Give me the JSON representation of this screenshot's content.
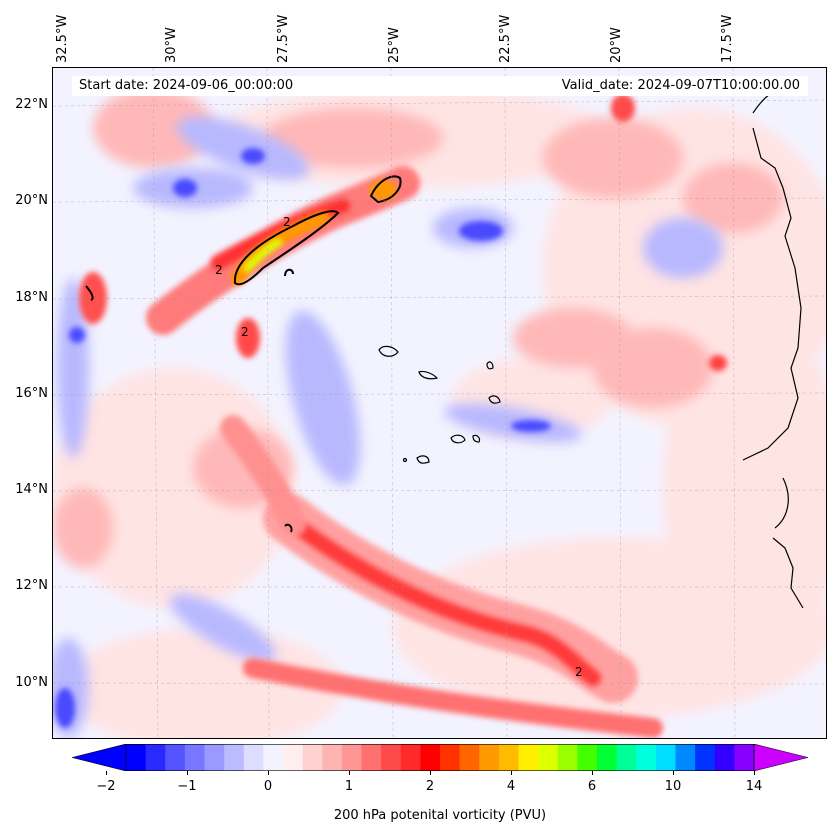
{
  "map": {
    "lon_labels": [
      "32.5°W",
      "30°W",
      "27.5°W",
      "25°W",
      "22.5°W",
      "20°W",
      "17.5°W"
    ],
    "lat_labels": [
      "22°N",
      "20°N",
      "18°N",
      "16°N",
      "14°N",
      "12°N",
      "10°N"
    ],
    "start_date": "Start date: 2024-09-06_00:00:00",
    "valid_date": "Valid_date: 2024-09-07T10:00:00.00",
    "contour_labels": [
      "2",
      "2",
      "2",
      "2"
    ]
  },
  "colorbar": {
    "label": "200 hPa potenital vorticity (PVU)",
    "ticks": [
      "−2",
      "−1",
      "0",
      "1",
      "2",
      "4",
      "6",
      "10",
      "14"
    ],
    "colors": [
      "#0000ff",
      "#2a2aff",
      "#5555ff",
      "#7777ff",
      "#9999ff",
      "#bbbbff",
      "#ddddff",
      "#f3f3ff",
      "#ffeeee",
      "#ffd2d2",
      "#ffb4b4",
      "#ff9696",
      "#ff7070",
      "#ff4a4a",
      "#ff2a2a",
      "#ff0000",
      "#ff3300",
      "#ff6600",
      "#ff9900",
      "#ffbb00",
      "#ffee00",
      "#ddff00",
      "#99ff00",
      "#44ff00",
      "#00ff33",
      "#00ff99",
      "#00ffdd",
      "#00ddff",
      "#0088ff",
      "#0033ff",
      "#3300ff",
      "#8800ff"
    ],
    "extend_low_color": "#0000ff",
    "extend_high_color": "#cc00ff"
  }
}
